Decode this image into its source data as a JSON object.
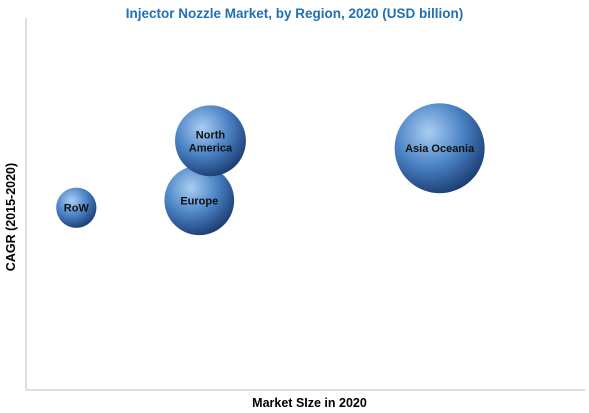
{
  "chart_data": {
    "type": "scatter",
    "title": "Injector Nozzle Market, by Region, 2020 (USD billion)",
    "xlabel": "Market SIze in 2020",
    "ylabel": "CAGR (2015-2020)",
    "grid": false,
    "series": [
      {
        "label": [
          "RoW"
        ],
        "x": 0.09,
        "y": 0.49,
        "size": 0.2
      },
      {
        "label": [
          "Europe"
        ],
        "x": 0.31,
        "y": 0.51,
        "size": 0.6
      },
      {
        "label": [
          "North",
          "America"
        ],
        "x": 0.33,
        "y": 0.67,
        "size": 0.62
      },
      {
        "label": [
          "Asia Oceania"
        ],
        "x": 0.74,
        "y": 0.65,
        "size": 1.0
      }
    ],
    "colors": {
      "bubble_light": "#a9cdf2",
      "bubble_mid": "#4a82c4",
      "bubble_dark": "#1d3f75",
      "title": "#1f6fb5"
    }
  }
}
